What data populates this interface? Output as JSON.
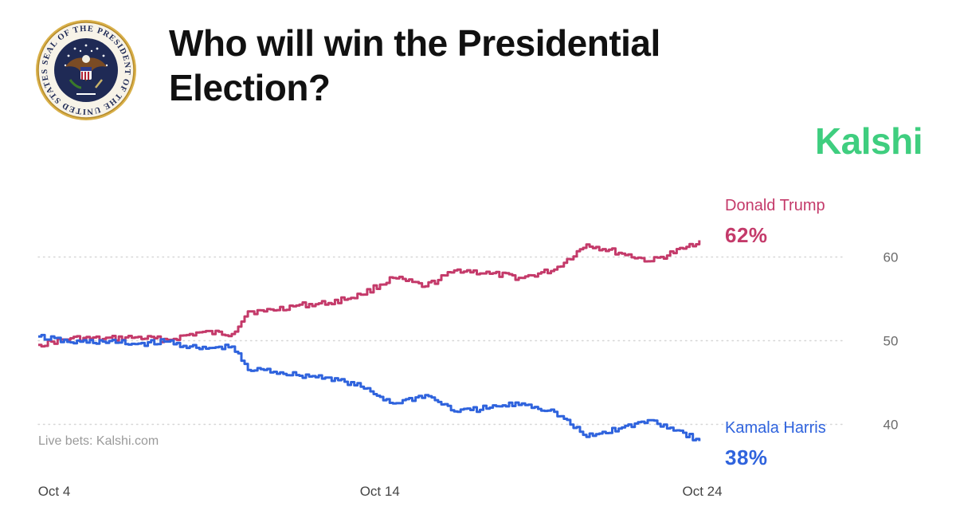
{
  "header": {
    "title": "Who will win the Presidential Election?",
    "brand": "Kalshi",
    "seal_text": "SEAL OF THE PRESIDENT OF THE UNITED STATES"
  },
  "chart_data": {
    "type": "line",
    "title": "Who will win the Presidential Election?",
    "xlabel": "",
    "ylabel": "",
    "x_ticks": [
      "Oct 4",
      "Oct 14",
      "Oct 24"
    ],
    "x_range": [
      "2024-10-04",
      "2024-10-25"
    ],
    "y_ticks": [
      40,
      50,
      60
    ],
    "ylim": [
      37,
      65
    ],
    "grid": "horizontal dotted",
    "source_note": "Live bets: Kalshi.com",
    "series": [
      {
        "name": "Donald Trump",
        "color": "#c43a6a",
        "end_label": "62%",
        "points": [
          [
            "2024-10-04",
            49.5
          ],
          [
            "2024-10-05",
            50.3
          ],
          [
            "2024-10-06",
            50.2
          ],
          [
            "2024-10-07",
            50.4
          ],
          [
            "2024-10-08",
            50.1
          ],
          [
            "2024-10-09",
            51.0
          ],
          [
            "2024-10-10",
            50.8
          ],
          [
            "2024-10-10T12:00",
            53.5
          ],
          [
            "2024-10-11",
            53.5
          ],
          [
            "2024-10-12",
            54.2
          ],
          [
            "2024-10-13",
            54.5
          ],
          [
            "2024-10-14",
            55.5
          ],
          [
            "2024-10-15",
            57.5
          ],
          [
            "2024-10-16",
            56.5
          ],
          [
            "2024-10-17",
            58.5
          ],
          [
            "2024-10-18",
            58.0
          ],
          [
            "2024-10-19",
            57.5
          ],
          [
            "2024-10-20",
            58.5
          ],
          [
            "2024-10-21",
            61.5
          ],
          [
            "2024-10-22",
            60.5
          ],
          [
            "2024-10-23",
            59.5
          ],
          [
            "2024-10-24",
            61.0
          ],
          [
            "2024-10-24T12:00",
            62.0
          ]
        ]
      },
      {
        "name": "Kamala Harris",
        "color": "#2f63dd",
        "end_label": "38%",
        "points": [
          [
            "2024-10-04",
            50.5
          ],
          [
            "2024-10-05",
            49.8
          ],
          [
            "2024-10-06",
            49.9
          ],
          [
            "2024-10-07",
            49.6
          ],
          [
            "2024-10-08",
            49.9
          ],
          [
            "2024-10-09",
            49.0
          ],
          [
            "2024-10-10",
            49.3
          ],
          [
            "2024-10-10T12:00",
            46.5
          ],
          [
            "2024-10-11",
            46.5
          ],
          [
            "2024-10-12",
            45.9
          ],
          [
            "2024-10-13",
            45.6
          ],
          [
            "2024-10-14",
            44.5
          ],
          [
            "2024-10-15",
            42.5
          ],
          [
            "2024-10-16",
            43.5
          ],
          [
            "2024-10-17",
            41.5
          ],
          [
            "2024-10-18",
            42.0
          ],
          [
            "2024-10-19",
            42.5
          ],
          [
            "2024-10-20",
            41.5
          ],
          [
            "2024-10-21",
            38.5
          ],
          [
            "2024-10-22",
            39.5
          ],
          [
            "2024-10-23",
            40.5
          ],
          [
            "2024-10-24",
            39.0
          ],
          [
            "2024-10-24T12:00",
            38.0
          ]
        ]
      }
    ]
  },
  "colors": {
    "brand": "#3fce7f",
    "trump": "#c43a6a",
    "harris": "#2f63dd",
    "grid": "#d6d6d6"
  }
}
